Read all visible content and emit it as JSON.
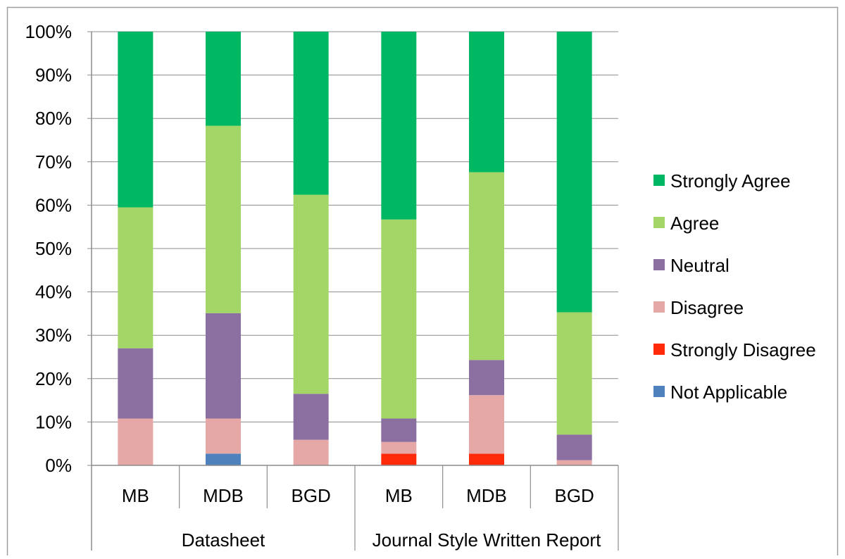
{
  "chart_data": {
    "type": "bar",
    "stacked": true,
    "percent_stacked": true,
    "groups": [
      {
        "label": "Datasheet",
        "categories": [
          "MB",
          "MDB",
          "BGD"
        ]
      },
      {
        "label": "Journal Style Written Report",
        "categories": [
          "MB",
          "MDB",
          "BGD"
        ]
      }
    ],
    "categories": [
      "MB",
      "MDB",
      "BGD",
      "MB",
      "MDB",
      "BGD"
    ],
    "y_ticks": [
      "0%",
      "10%",
      "20%",
      "30%",
      "40%",
      "50%",
      "60%",
      "70%",
      "80%",
      "90%",
      "100%"
    ],
    "ylim": [
      0,
      100
    ],
    "grid": true,
    "legend_position": "right",
    "series": [
      {
        "name": "Not Applicable",
        "color": "#4f81bd",
        "values": [
          0,
          2.7,
          0,
          0,
          0,
          0
        ]
      },
      {
        "name": "Strongly Disagree",
        "color": "#ff2a0a",
        "values": [
          0,
          0,
          0,
          2.7,
          2.7,
          0
        ]
      },
      {
        "name": "Disagree",
        "color": "#e6a8a6",
        "values": [
          10.8,
          8.1,
          5.9,
          2.7,
          13.5,
          1.2
        ]
      },
      {
        "name": "Neutral",
        "color": "#8a6fa0",
        "values": [
          16.2,
          24.3,
          10.6,
          5.4,
          8.1,
          5.9
        ]
      },
      {
        "name": "Agree",
        "color": "#a3d667",
        "values": [
          32.5,
          43.2,
          45.9,
          45.9,
          43.3,
          28.2
        ]
      },
      {
        "name": "Strongly Agree",
        "color": "#00b863",
        "values": [
          40.5,
          21.7,
          37.6,
          43.3,
          32.4,
          64.7
        ]
      }
    ]
  }
}
